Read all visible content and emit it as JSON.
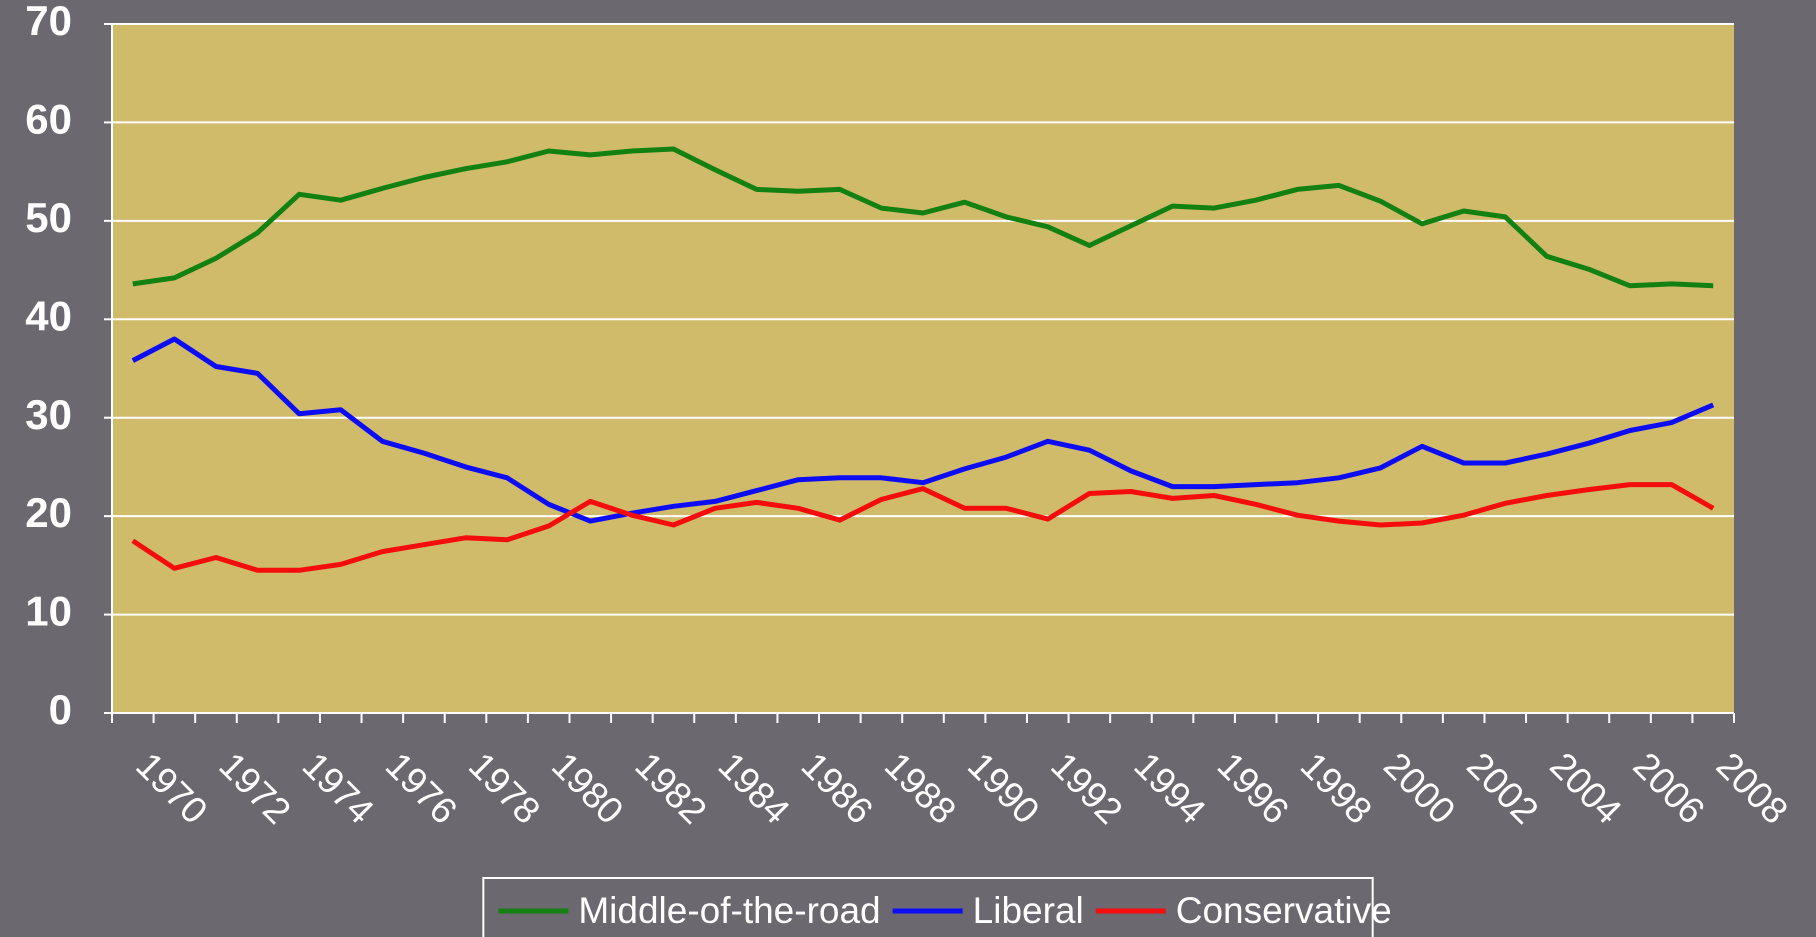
{
  "chart_data": {
    "type": "line",
    "categories": [
      "1970",
      null,
      "1972",
      null,
      "1974",
      null,
      "1976",
      null,
      "1978",
      null,
      "1980",
      null,
      "1982",
      null,
      "1984",
      null,
      "1986",
      null,
      "1988",
      null,
      "1990",
      null,
      "1992",
      null,
      "1994",
      null,
      "1996",
      null,
      "1998",
      null,
      "2000",
      null,
      "2002",
      null,
      "2004",
      null,
      "2006",
      null,
      "2008"
    ],
    "series": [
      {
        "name": "Middle-of-the-road",
        "color": "#138012",
        "values": [
          43.6,
          44.2,
          46.2,
          48.8,
          52.7,
          52.1,
          53.3,
          54.4,
          55.3,
          56.0,
          57.1,
          56.7,
          57.1,
          57.3,
          55.2,
          53.2,
          53.0,
          53.2,
          51.3,
          50.8,
          51.9,
          50.4,
          49.4,
          47.5,
          49.5,
          51.5,
          51.3,
          52.1,
          53.2,
          53.6,
          52.0,
          49.7,
          51.0,
          50.4,
          46.4,
          45.1,
          43.4,
          43.6,
          43.4
        ]
      },
      {
        "name": "Liberal",
        "color": "#0d0df5",
        "values": [
          35.8,
          38.0,
          35.2,
          34.5,
          30.4,
          30.8,
          27.6,
          26.4,
          25.0,
          23.9,
          21.2,
          19.5,
          20.3,
          21.0,
          21.5,
          22.6,
          23.7,
          23.9,
          23.9,
          23.4,
          24.8,
          26.0,
          27.6,
          26.7,
          24.6,
          23.0,
          23.0,
          23.2,
          23.4,
          23.9,
          24.9,
          27.1,
          25.4,
          25.4,
          26.3,
          27.4,
          28.7,
          29.5,
          31.3
        ]
      },
      {
        "name": "Conservative",
        "color": "#f50d0d",
        "values": [
          17.5,
          14.7,
          15.8,
          14.5,
          14.5,
          15.1,
          16.4,
          17.1,
          17.8,
          17.6,
          19.0,
          21.5,
          20.1,
          19.1,
          20.8,
          21.4,
          20.8,
          19.6,
          21.7,
          22.8,
          20.8,
          20.8,
          19.7,
          22.3,
          22.5,
          21.8,
          22.1,
          21.2,
          20.1,
          19.5,
          19.1,
          19.3,
          20.1,
          21.3,
          22.1,
          22.7,
          23.2,
          23.2,
          20.8
        ]
      }
    ],
    "ylim": [
      0,
      70
    ],
    "yticks": [
      0,
      10,
      20,
      30,
      40,
      50,
      60,
      70
    ],
    "grid": true,
    "plot_color": "#cfbb6a",
    "legend": "bottom"
  }
}
